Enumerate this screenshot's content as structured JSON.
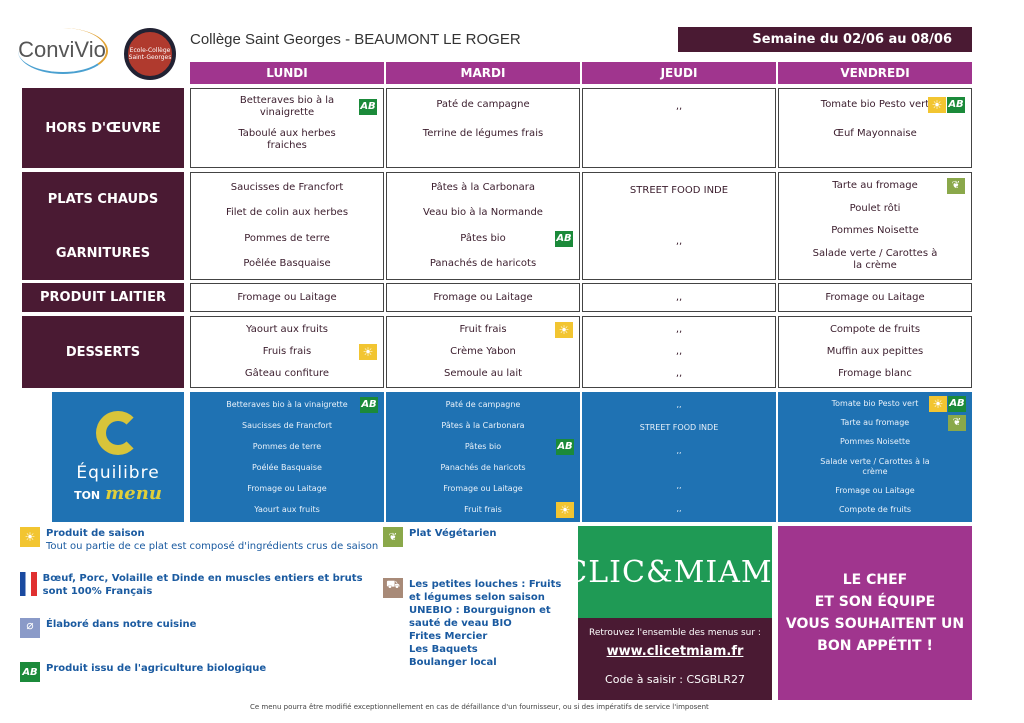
{
  "header": {
    "brand": "ConviVio",
    "school_logo": "Ecole-Collège Saint-Georges",
    "title": "Collège Saint Georges - BEAUMONT LE ROGER",
    "week": "Semaine du 02/06 au 08/06"
  },
  "days": [
    "LUNDI",
    "MARDI",
    "JEUDI",
    "VENDREDI"
  ],
  "categories": {
    "hors": "HORS D'ŒUVRE",
    "plats": "PLATS CHAUDS",
    "garnitures": "GARNITURES",
    "laitier": "PRODUIT LAITIER",
    "desserts": "DESSERTS"
  },
  "rows": [
    {
      "key": "hors",
      "cells": [
        [
          {
            "t": "Betteraves bio à la vinaigrette",
            "i": [
              "ab"
            ]
          },
          {
            "t": "Taboulé aux herbes fraiches"
          },
          {
            "t": ""
          }
        ],
        [
          {
            "t": "Paté de campagne"
          },
          {
            "t": "Terrine de légumes frais"
          },
          {
            "t": ""
          }
        ],
        [
          {
            "t": ",,"
          },
          {
            "t": ""
          },
          {
            "t": ""
          }
        ],
        [
          {
            "t": "Tomate bio Pesto vert",
            "i": [
              "sun",
              "ab"
            ]
          },
          {
            "t": "Œuf Mayonnaise"
          },
          {
            "t": ""
          }
        ]
      ]
    },
    {
      "key": "plats",
      "cells": [
        [
          {
            "t": "Saucisses de Francfort"
          },
          {
            "t": "Filet de colin aux herbes"
          },
          {
            "t": "Pommes de terre"
          },
          {
            "t": "Poêlée Basquaise"
          }
        ],
        [
          {
            "t": "Pâtes à la Carbonara"
          },
          {
            "t": "Veau bio à la Normande"
          },
          {
            "t": "Pâtes bio",
            "i": [
              "ab"
            ]
          },
          {
            "t": "Panachés de haricots"
          }
        ],
        [
          {
            "t": "STREET FOOD INDE"
          },
          {
            "t": ""
          },
          {
            "t": ",,"
          },
          {
            "t": ""
          }
        ],
        [
          {
            "t": "Tarte au fromage",
            "i": [
              "veg"
            ]
          },
          {
            "t": "Poulet rôti"
          },
          {
            "t": "Pommes Noisette"
          },
          {
            "t": "Salade verte / Carottes à la crème"
          }
        ]
      ]
    },
    {
      "key": "laitier",
      "cells": [
        [
          {
            "t": "Fromage ou Laitage"
          }
        ],
        [
          {
            "t": "Fromage ou Laitage"
          }
        ],
        [
          {
            "t": ",,"
          }
        ],
        [
          {
            "t": "Fromage ou Laitage"
          }
        ]
      ]
    },
    {
      "key": "desserts",
      "cells": [
        [
          {
            "t": "Yaourt aux fruits"
          },
          {
            "t": "Fruis frais",
            "i": [
              "sun"
            ]
          },
          {
            "t": "Gâteau confiture"
          }
        ],
        [
          {
            "t": "Fruit frais",
            "i": [
              "sun"
            ]
          },
          {
            "t": "Crème Yabon"
          },
          {
            "t": "Semoule au lait"
          }
        ],
        [
          {
            "t": ",,"
          },
          {
            "t": ",,"
          },
          {
            "t": ",,"
          }
        ],
        [
          {
            "t": "Compote de fruits"
          },
          {
            "t": "Muffin aux pepittes"
          },
          {
            "t": "Fromage blanc"
          }
        ]
      ]
    },
    {
      "key": "blue",
      "cells": [
        [
          {
            "t": "Betteraves bio à la vinaigrette",
            "i": [
              "ab"
            ]
          },
          {
            "t": "Saucisses de Francfort"
          },
          {
            "t": "Pommes de terre"
          },
          {
            "t": "Poélée Basquaise"
          },
          {
            "t": "Fromage ou Laitage"
          },
          {
            "t": "Yaourt aux fruits"
          }
        ],
        [
          {
            "t": "Paté de campagne"
          },
          {
            "t": "Pâtes à la Carbonara"
          },
          {
            "t": "Pâtes bio",
            "i": [
              "ab"
            ]
          },
          {
            "t": "Panachés de haricots"
          },
          {
            "t": "Fromage ou Laitage"
          },
          {
            "t": "Fruit frais",
            "i": [
              "sun"
            ]
          }
        ],
        [
          {
            "t": ",,"
          },
          {
            "t": "STREET FOOD INDE"
          },
          {
            "t": ",,"
          },
          {
            "t": ""
          },
          {
            "t": ",,"
          },
          {
            "t": ",,"
          }
        ],
        [
          {
            "t": "Tomate bio Pesto vert",
            "i": [
              "sun",
              "ab"
            ]
          },
          {
            "t": "Tarte au fromage",
            "i": [
              "veg"
            ]
          },
          {
            "t": "Pommes Noisette"
          },
          {
            "t": "Salade verte / Carottes à la crème"
          },
          {
            "t": "Fromage ou Laitage"
          },
          {
            "t": "Compote de fruits"
          }
        ]
      ]
    }
  ],
  "equilibre": {
    "line1": "Équilibre",
    "line2a": "TON",
    "line2b": "menu"
  },
  "legend": {
    "saison_title": "Produit de saison",
    "saison_desc": "Tout ou partie de ce plat est composé d'ingrédients crus de saison",
    "france": "Bœuf, Porc, Volaille et Dinde en muscles entiers et bruts sont 100% Français",
    "cuisine": "Élaboré dans notre cuisine",
    "bio": "Produit issu de l'agriculture biologique",
    "vegetarien": "Plat Végétarien",
    "local": [
      "Les petites louches : Fruits et légumes selon saison",
      "UNEBIO : Bourguignon et sauté de veau BIO",
      "Frites Mercier",
      "Les Baquets",
      "Boulanger local"
    ]
  },
  "clicmiam": {
    "logo": "CLIC&MIAM!",
    "text": "Retrouvez l'ensemble des menus sur :",
    "url": "www.clicetmiam.fr",
    "code": "Code à saisir : CSGBLR27"
  },
  "chef": [
    "LE CHEF",
    "ET SON ÉQUIPE",
    "VOUS SOUHAITENT UN",
    "BON APPÉTIT !"
  ],
  "footer": "Ce menu pourra être modifié exceptionnellement en cas de défaillance d'un fournisseur, ou si des impératifs de service l'imposent",
  "colors": {
    "dark": "#4a1a33",
    "magenta": "#a0358e",
    "blue": "#1f72b3",
    "green": "#1f9a55"
  }
}
